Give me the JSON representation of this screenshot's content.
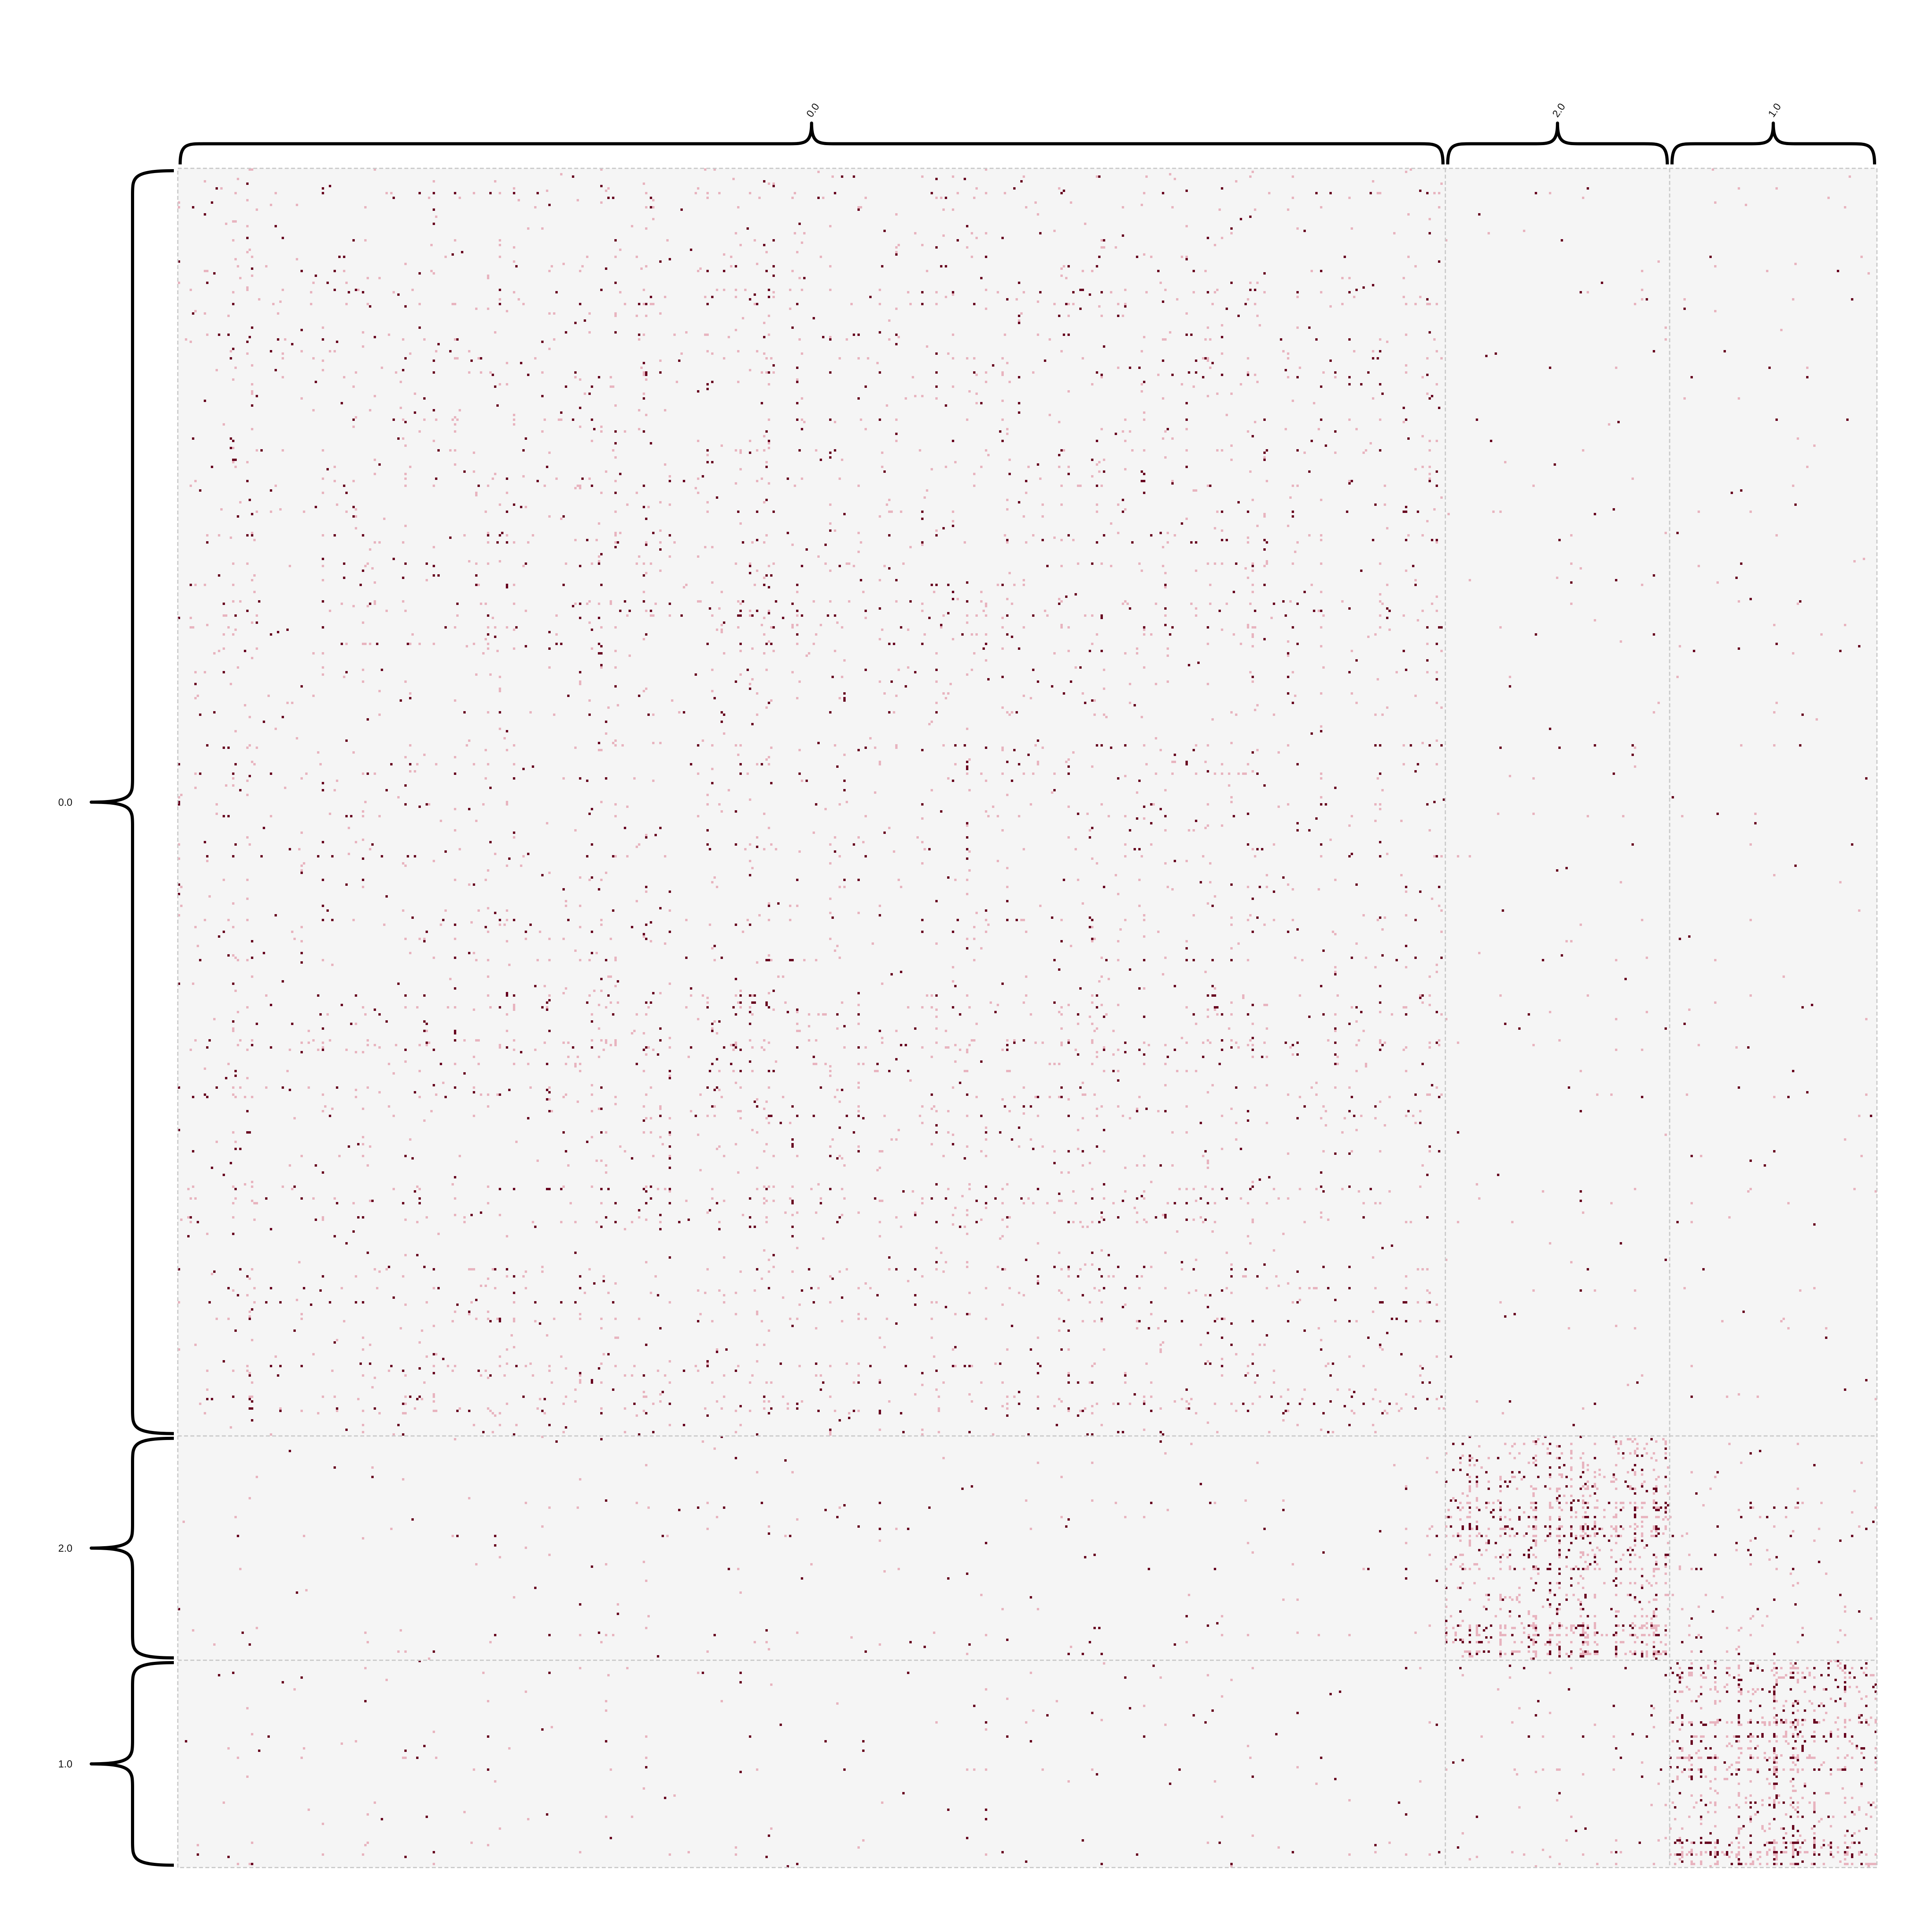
{
  "chart_data": {
    "type": "heatmap",
    "title": "",
    "xlabel": "",
    "ylabel": "",
    "grid": false,
    "legend": "none",
    "colors": {
      "background": "#f5f5f5",
      "cell_low": "#e8b4bf",
      "cell_high": "#67001f",
      "divider": "#c8c8c8",
      "brace": "#000000"
    },
    "groups": [
      {
        "label": "0.0",
        "fraction": 0.746
      },
      {
        "label": "2.0",
        "fraction": 0.132
      },
      {
        "label": "1.0",
        "fraction": 0.122
      }
    ],
    "block_density": [
      [
        0.025,
        0.004,
        0.004
      ],
      [
        0.006,
        0.14,
        0.018
      ],
      [
        0.006,
        0.014,
        0.17
      ]
    ]
  }
}
